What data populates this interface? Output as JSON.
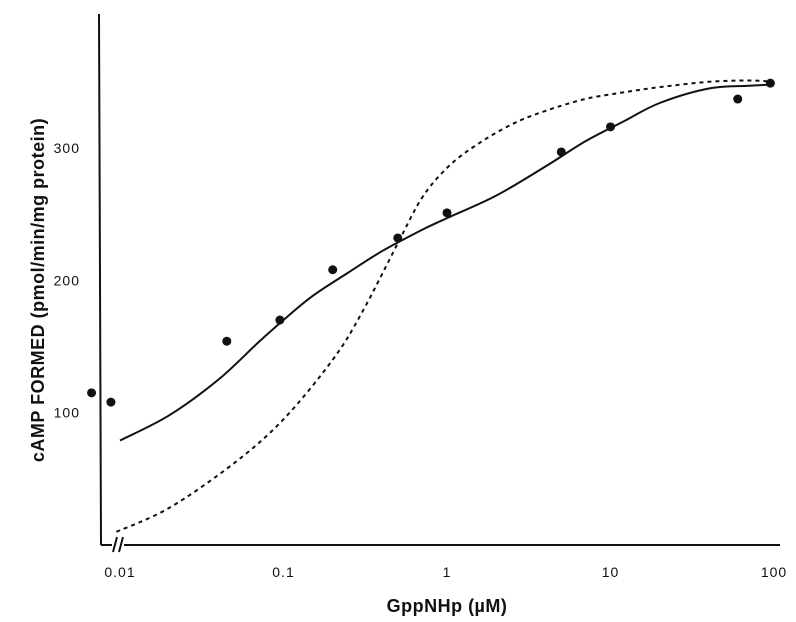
{
  "chart_data": {
    "type": "scatter",
    "title": "",
    "xlabel": "GppNHp (µM)",
    "ylabel": "cAMP FORMED (pmol/min/mg protein)",
    "x_scale": "log",
    "xlim": [
      0.006,
      110
    ],
    "ylim": [
      0,
      380
    ],
    "x_ticks": [
      {
        "value": 0.01,
        "label": "0.01"
      },
      {
        "value": 0.1,
        "label": "0.1"
      },
      {
        "value": 1,
        "label": "1"
      },
      {
        "value": 10,
        "label": "10"
      },
      {
        "value": 100,
        "label": "100"
      }
    ],
    "y_ticks": [
      {
        "value": 100,
        "label": "100"
      },
      {
        "value": 200,
        "label": "200"
      },
      {
        "value": 300,
        "label": "300"
      }
    ],
    "axis_break": "x",
    "grid": false,
    "legend": "none",
    "series": [
      {
        "style": "points",
        "x": [
          0.0067,
          0.0088,
          0.045,
          0.095,
          0.2,
          0.5,
          1.0,
          5.0,
          10.0,
          60.0,
          95.0
        ],
        "y": [
          115,
          108,
          154,
          170,
          208,
          232,
          251,
          297,
          316,
          337,
          349
        ]
      },
      {
        "style": "solid",
        "x": [
          0.01,
          0.02,
          0.04,
          0.07,
          0.1,
          0.15,
          0.25,
          0.4,
          0.7,
          1.0,
          2.0,
          4.0,
          7.0,
          12.0,
          20.0,
          40.0,
          70.0,
          100.0
        ],
        "y": [
          79,
          98,
          125,
          153,
          170,
          188,
          206,
          222,
          238,
          247,
          264,
          286,
          305,
          320,
          334,
          345,
          347,
          348
        ]
      },
      {
        "style": "dashed",
        "x": [
          0.0095,
          0.02,
          0.05,
          0.1,
          0.2,
          0.3,
          0.5,
          0.7,
          1.0,
          1.5,
          2.5,
          4.0,
          7.0,
          12.0,
          20.0,
          40.0,
          70.0,
          100.0
        ],
        "y": [
          10,
          28,
          62,
          95,
          140,
          175,
          228,
          262,
          285,
          302,
          318,
          328,
          337,
          342,
          346,
          350,
          351,
          350
        ]
      }
    ]
  }
}
